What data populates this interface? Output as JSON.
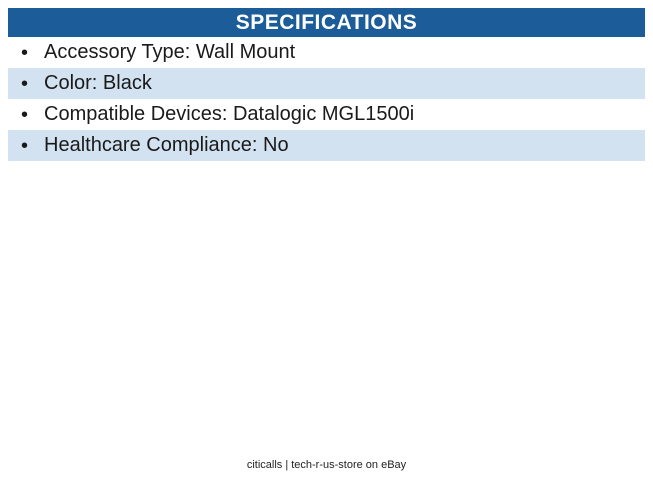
{
  "header": {
    "title": "SPECIFICATIONS"
  },
  "list": {
    "bullet": "•"
  },
  "specs": [
    {
      "label": "Accessory Type",
      "value": "Wall Mount",
      "text": "Accessory Type: Wall Mount"
    },
    {
      "label": "Color",
      "value": "Black",
      "text": "Color: Black"
    },
    {
      "label": "Compatible Devices",
      "value": "Datalogic MGL1500i",
      "text": "Compatible Devices: Datalogic MGL1500i"
    },
    {
      "label": "Healthcare Compliance",
      "value": "No",
      "text": "Healthcare Compliance: No"
    }
  ],
  "footer": {
    "text": "citicalls | tech-r-us-store on eBay"
  },
  "colors": {
    "header_bg": "#1C5C99",
    "header_text": "#FFFFFF",
    "row_alt_bg": "#D3E2F1",
    "row_bg": "#FFFFFF",
    "text": "#1A1A1A",
    "footer_text": "#222222"
  }
}
